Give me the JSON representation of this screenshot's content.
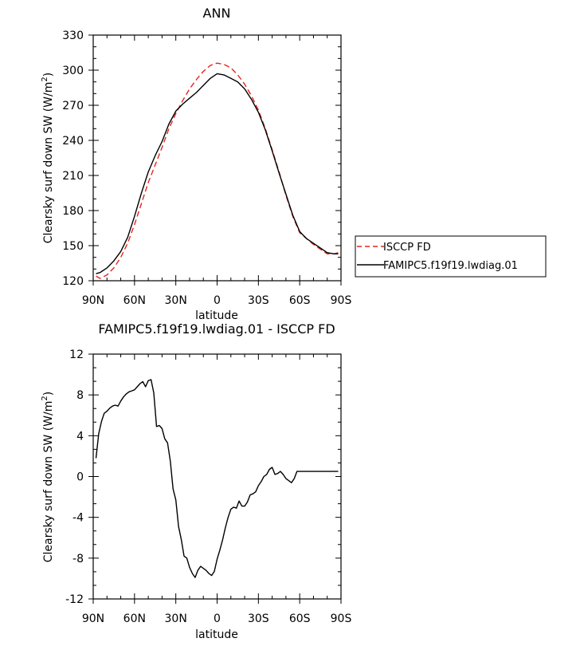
{
  "chart_data": [
    {
      "type": "line",
      "title": "ANN",
      "xlabel": "latitude",
      "ylabel_main": "Clearsky surf down SW (W/m",
      "ylabel_sup": "2",
      "ylabel_close": ")",
      "ylim": [
        120,
        330
      ],
      "yticks": [
        120,
        150,
        180,
        210,
        240,
        270,
        300,
        330
      ],
      "ytick_labels": [
        "120",
        "150",
        "180",
        "210",
        "240",
        "270",
        "300",
        "330"
      ],
      "xlim": [
        -90,
        90
      ],
      "xticks": [
        -90,
        -60,
        -30,
        0,
        30,
        60,
        90
      ],
      "xtick_labels": [
        "90N",
        "60N",
        "30N",
        "0",
        "30S",
        "60S",
        "90S"
      ],
      "x_direction": "north-to-south",
      "grid": false,
      "legend_position": "right",
      "series": [
        {
          "name": "ISCCP FD",
          "color": "#e8231e",
          "dash": "dashed",
          "x": [
            -88,
            -85,
            -80,
            -75,
            -70,
            -65,
            -60,
            -55,
            -50,
            -45,
            -40,
            -35,
            -30,
            -25,
            -20,
            -15,
            -10,
            -5,
            0,
            5,
            10,
            15,
            20,
            25,
            30,
            35,
            40,
            45,
            50,
            55,
            60,
            65,
            70,
            75,
            80,
            85,
            88
          ],
          "y": [
            124,
            122,
            125,
            131,
            140,
            152,
            168,
            186,
            204,
            219,
            234,
            250,
            263,
            274,
            284,
            292,
            299,
            304,
            306,
            305,
            302,
            296,
            288,
            278,
            266,
            250,
            232,
            213,
            193,
            175,
            161,
            156,
            151,
            147,
            143,
            143,
            144
          ]
        },
        {
          "name": "FAMIPC5.f19f19.lwdiag.01",
          "color": "#000000",
          "dash": "solid",
          "x": [
            -88,
            -85,
            -80,
            -75,
            -70,
            -65,
            -60,
            -55,
            -50,
            -45,
            -40,
            -35,
            -30,
            -25,
            -20,
            -15,
            -10,
            -5,
            0,
            5,
            10,
            15,
            20,
            25,
            30,
            35,
            40,
            45,
            50,
            55,
            60,
            65,
            70,
            75,
            80,
            85,
            88
          ],
          "y": [
            126,
            127,
            131,
            137,
            145,
            157,
            175,
            195,
            213,
            227,
            239,
            254,
            265,
            271,
            276,
            281,
            287,
            293,
            297,
            296,
            293,
            290,
            284,
            275,
            264,
            249,
            231,
            212,
            194,
            176,
            162,
            156,
            152,
            148,
            144,
            143,
            143
          ]
        }
      ]
    },
    {
      "type": "line",
      "title": "FAMIPC5.f19f19.lwdiag.01 - ISCCP FD",
      "xlabel": "latitude",
      "ylabel_main": "Clearsky surf down SW (W/m",
      "ylabel_sup": "2",
      "ylabel_close": ")",
      "ylim": [
        -12,
        12
      ],
      "yticks": [
        -12,
        -8,
        -4,
        0,
        4,
        8,
        12
      ],
      "ytick_labels": [
        "-12",
        "-8",
        "-4",
        "0",
        "4",
        "8",
        "12"
      ],
      "xlim": [
        -90,
        90
      ],
      "xticks": [
        -90,
        -60,
        -30,
        0,
        30,
        60,
        90
      ],
      "xtick_labels": [
        "90N",
        "60N",
        "30N",
        "0",
        "30S",
        "60S",
        "90S"
      ],
      "x_direction": "north-to-south",
      "grid": false,
      "series": [
        {
          "name": "",
          "color": "#000000",
          "dash": "solid",
          "x": [
            -88,
            -86,
            -84,
            -82,
            -80,
            -78,
            -76,
            -74,
            -72,
            -70,
            -68,
            -66,
            -64,
            -62,
            -60,
            -58,
            -56,
            -54,
            -52,
            -50,
            -48,
            -46,
            -44,
            -42,
            -40,
            -38,
            -36,
            -34,
            -32,
            -30,
            -28,
            -26,
            -24,
            -22,
            -20,
            -18,
            -16,
            -14,
            -12,
            -10,
            -8,
            -6,
            -4,
            -2,
            0,
            2,
            4,
            6,
            8,
            10,
            12,
            14,
            16,
            18,
            20,
            22,
            24,
            26,
            28,
            30,
            32,
            34,
            36,
            38,
            40,
            42,
            44,
            46,
            48,
            50,
            52,
            54,
            56,
            58,
            60,
            62,
            64,
            66,
            68,
            70,
            72,
            74,
            76,
            78,
            80,
            82,
            84,
            86,
            88
          ],
          "y": [
            1.8,
            4.2,
            5.4,
            6.2,
            6.4,
            6.7,
            6.9,
            7.0,
            6.9,
            7.4,
            7.8,
            8.1,
            8.3,
            8.4,
            8.5,
            8.8,
            9.1,
            9.3,
            8.8,
            9.4,
            9.5,
            8.2,
            4.9,
            5.0,
            4.7,
            3.7,
            3.3,
            1.5,
            -1.2,
            -2.3,
            -4.9,
            -6.2,
            -7.8,
            -8.0,
            -8.9,
            -9.5,
            -9.9,
            -9.2,
            -8.8,
            -9.0,
            -9.2,
            -9.5,
            -9.7,
            -9.3,
            -8.1,
            -7.2,
            -6.2,
            -5.0,
            -4.0,
            -3.2,
            -3.0,
            -3.1,
            -2.4,
            -2.9,
            -2.9,
            -2.5,
            -1.8,
            -1.7,
            -1.5,
            -0.9,
            -0.5,
            0.0,
            0.2,
            0.7,
            0.9,
            0.2,
            0.3,
            0.5,
            0.2,
            -0.2,
            -0.4,
            -0.6,
            -0.2,
            0.5,
            0.5,
            0.5,
            0.5,
            0.5,
            0.5,
            0.5,
            0.5,
            0.5,
            0.5,
            0.5,
            0.5,
            0.5,
            0.5,
            0.5,
            0.5
          ]
        }
      ]
    }
  ]
}
